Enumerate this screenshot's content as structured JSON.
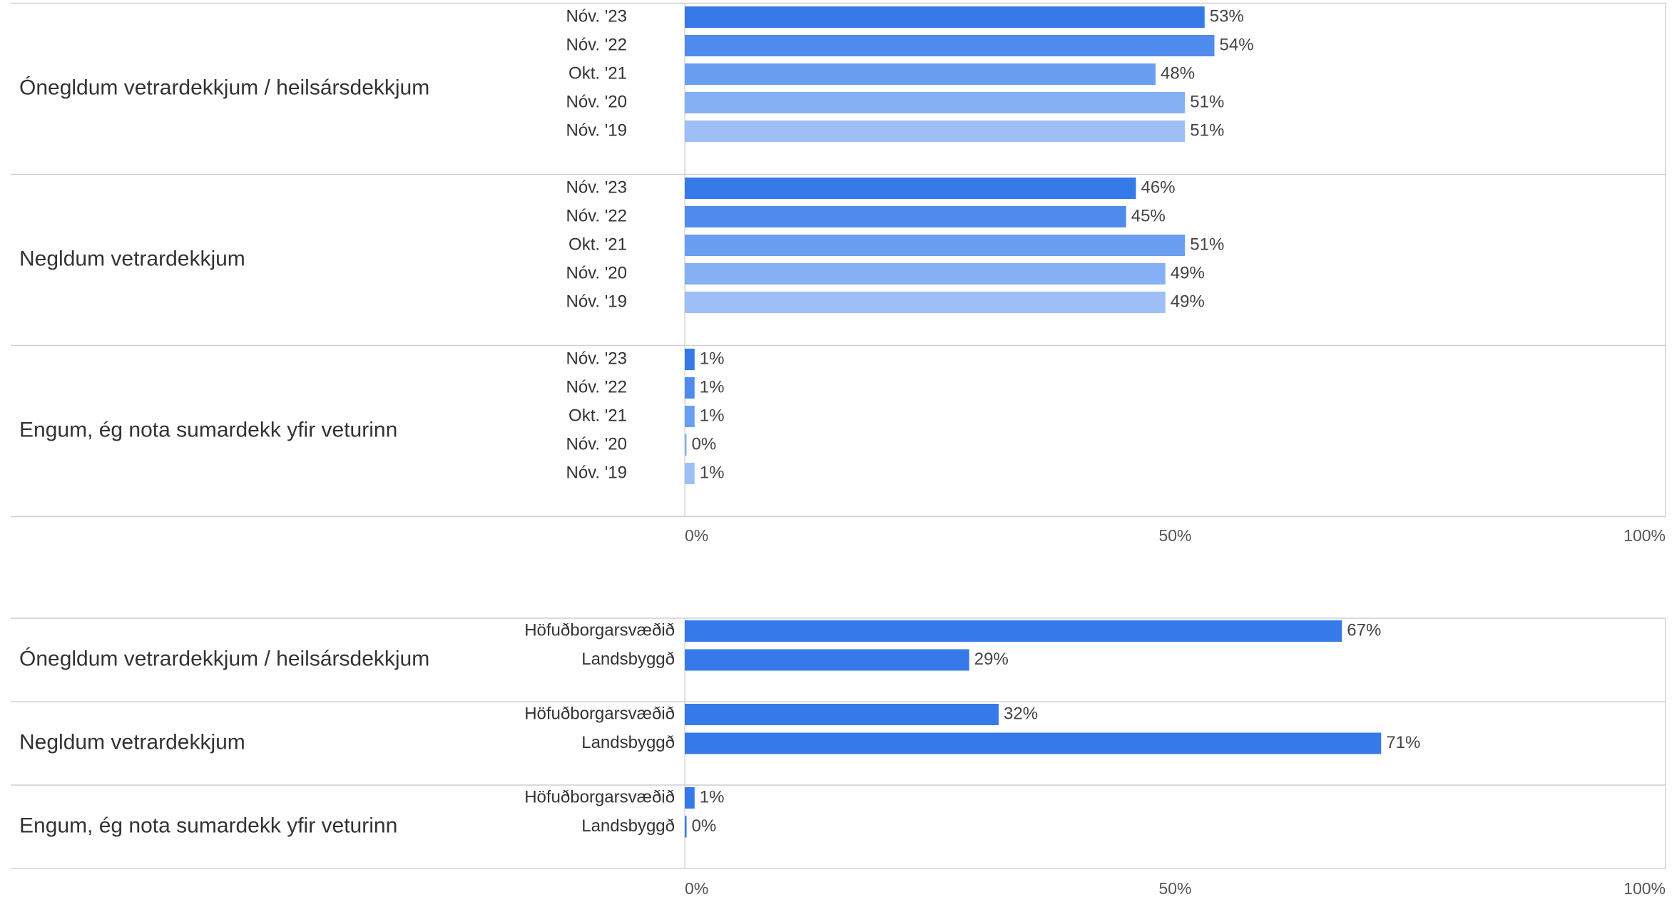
{
  "chart_data": [
    {
      "type": "bar",
      "orientation": "horizontal",
      "categories": [
        "Ónegldum vetrardekkjum / heilsársdekkjum",
        "Negldum vetrardekkjum",
        "Engum, ég nota sumardekk yfir veturinn"
      ],
      "series": [
        {
          "name": "Nóv. '23",
          "color": "#357ae8",
          "values": [
            53,
            46,
            1
          ],
          "value_labels": [
            "53%",
            "46%",
            "1%"
          ]
        },
        {
          "name": "Nóv. '22",
          "color": "#4f8bec",
          "values": [
            54,
            45,
            1
          ],
          "value_labels": [
            "54%",
            "45%",
            "1%"
          ]
        },
        {
          "name": "Okt. '21",
          "color": "#6a9ef0",
          "values": [
            48,
            51,
            1
          ],
          "value_labels": [
            "48%",
            "51%",
            "1%"
          ]
        },
        {
          "name": "Nóv. '20",
          "color": "#85b0f3",
          "values": [
            51,
            49,
            0
          ],
          "value_labels": [
            "51%",
            "49%",
            "0%"
          ]
        },
        {
          "name": "Nóv. '19",
          "color": "#9dbff6",
          "values": [
            51,
            49,
            1
          ],
          "value_labels": [
            "51%",
            "49%",
            "1%"
          ]
        }
      ],
      "xlim": [
        0,
        100
      ],
      "xticks": [
        {
          "value": 0,
          "label": "0%"
        },
        {
          "value": 50,
          "label": "50%"
        },
        {
          "value": 100,
          "label": "100%"
        }
      ],
      "grid": false
    },
    {
      "type": "bar",
      "orientation": "horizontal",
      "categories": [
        "Ónegldum vetrardekkjum / heilsársdekkjum",
        "Negldum vetrardekkjum",
        "Engum, ég nota sumardekk yfir veturinn"
      ],
      "series": [
        {
          "name": "Höfuðborgarsvæðið",
          "color": "#357ae8",
          "values": [
            67,
            32,
            1
          ],
          "value_labels": [
            "67%",
            "32%",
            "1%"
          ]
        },
        {
          "name": "Landsbyggð",
          "color": "#357ae8",
          "values": [
            29,
            71,
            0
          ],
          "value_labels": [
            "29%",
            "71%",
            "0%"
          ]
        }
      ],
      "xlim": [
        0,
        100
      ],
      "xticks": [
        {
          "value": 0,
          "label": "0%"
        },
        {
          "value": 50,
          "label": "50%"
        },
        {
          "value": 100,
          "label": "100%"
        }
      ],
      "grid": false
    }
  ]
}
